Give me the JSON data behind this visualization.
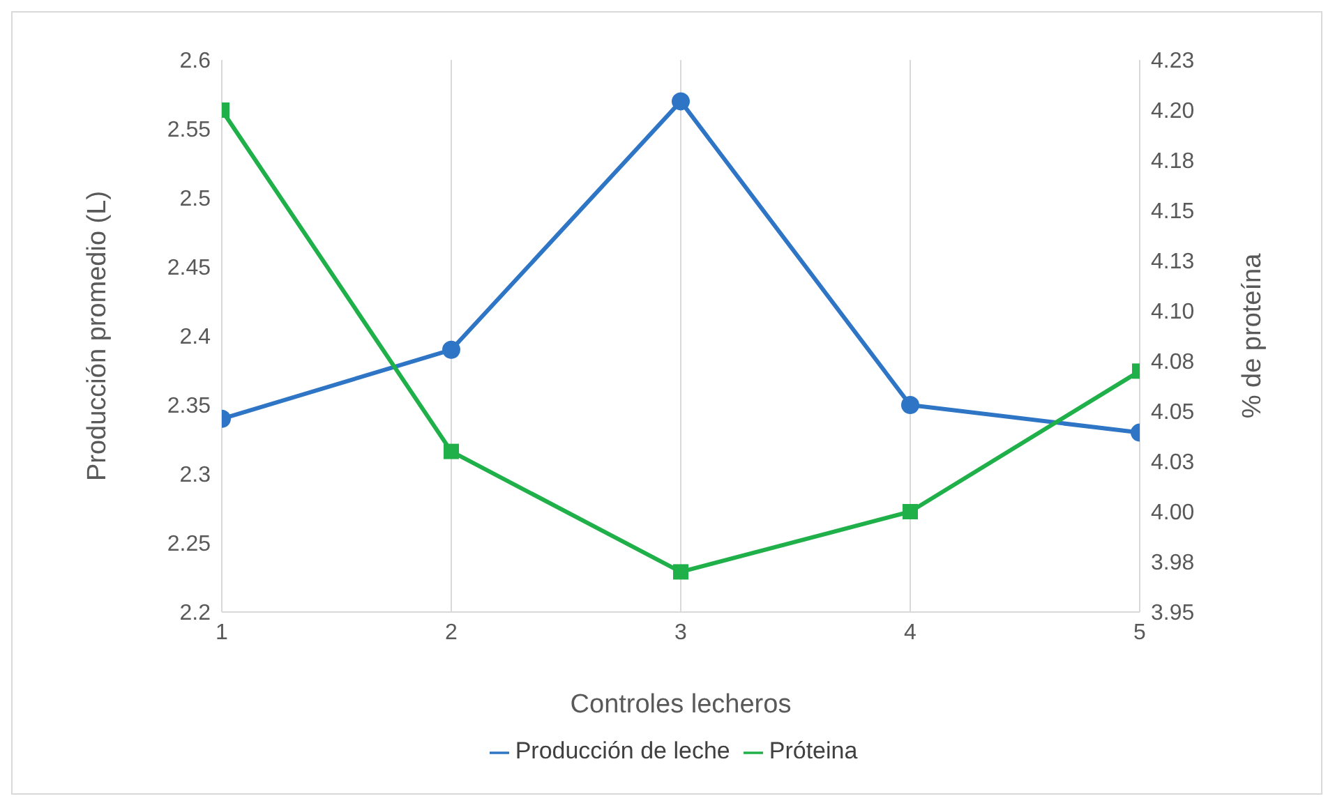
{
  "chart_data": {
    "type": "line",
    "xlabel": "Controles lecheros",
    "ylabel": "Producción promedio (L)",
    "y2label": "% de proteína",
    "x": [
      1,
      2,
      3,
      4,
      5
    ],
    "xlim": [
      1,
      5
    ],
    "xticks": [
      1,
      2,
      3,
      4,
      5
    ],
    "ylim": [
      2.2,
      2.6
    ],
    "yticks": [
      2.2,
      2.25,
      2.3,
      2.35,
      2.4,
      2.45,
      2.5,
      2.55,
      2.6
    ],
    "y2lim": [
      3.95,
      4.225
    ],
    "y2ticks": [
      3.95,
      {
        "value": 3.975,
        "label": "3.98"
      },
      {
        "value": 4.0,
        "label": "4.00"
      },
      {
        "value": 4.025,
        "label": "4.03"
      },
      {
        "value": 4.05,
        "label": "4.05"
      },
      {
        "value": 4.075,
        "label": "4.08"
      },
      {
        "value": 4.1,
        "label": "4.10"
      },
      {
        "value": 4.125,
        "label": "4.13"
      },
      {
        "value": 4.15,
        "label": "4.15"
      },
      {
        "value": 4.175,
        "label": "4.18"
      },
      {
        "value": 4.2,
        "label": "4.20"
      },
      {
        "value": 4.225,
        "label": "4.23"
      }
    ],
    "grid": "x",
    "legend": "bottom",
    "line_style": "solid",
    "series": [
      {
        "name": "Producción de leche",
        "color": "#2e75c6",
        "values": [
          2.34,
          2.39,
          2.57,
          2.35,
          2.33
        ],
        "marker": "circle"
      },
      {
        "name": "Próteina",
        "color": "#1fb04a",
        "values": [
          4.2,
          4.03,
          3.97,
          4.0,
          4.07
        ],
        "axis": "y2",
        "marker": "square"
      }
    ]
  }
}
